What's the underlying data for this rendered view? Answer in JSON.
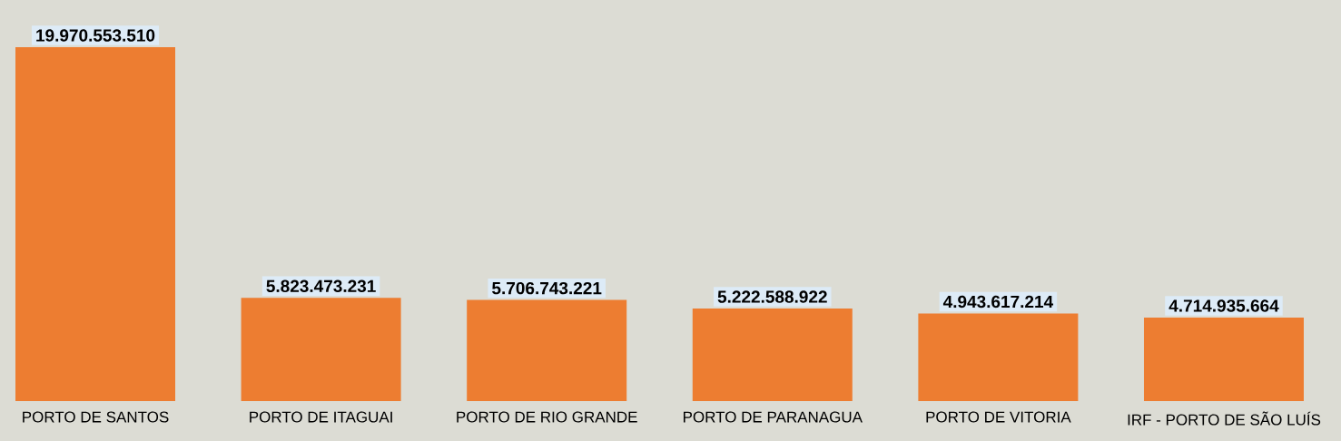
{
  "chart_data": {
    "type": "bar",
    "categories": [
      "PORTO DE SANTOS",
      "PORTO DE ITAGUAI",
      "PORTO DE RIO GRANDE",
      "PORTO DE PARANAGUA",
      "PORTO DE VITORIA",
      "IRF - PORTO DE SÃO LUÍS"
    ],
    "values": [
      19970553510,
      5823473231,
      5706743221,
      5222588922,
      4943617214,
      4714935664
    ],
    "value_labels": [
      "19.970.553.510",
      "5.823.473.231",
      "5.706.743.221",
      "5.222.588.922",
      "4.943.617.214",
      "4.714.935.664"
    ],
    "color": "#ed7d31"
  }
}
